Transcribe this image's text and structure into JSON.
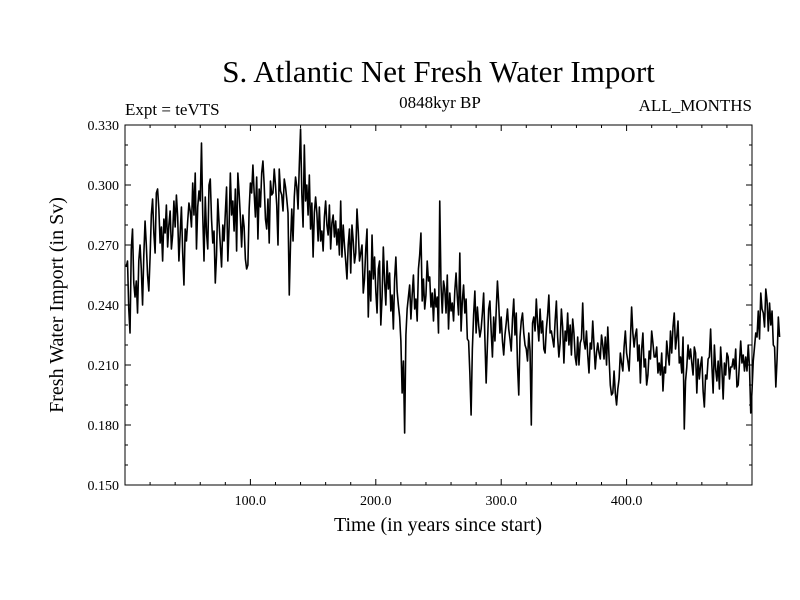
{
  "chart_data": {
    "type": "line",
    "title": "S. Atlantic Net Fresh Water Import",
    "subtitle_left": "Expt = teVTS",
    "subtitle_center": "0848kyr BP",
    "subtitle_right": "ALL_MONTHS",
    "xlabel": "Time (in years since start)",
    "ylabel": "Fresh Water Import (in Sv)",
    "xlim": [
      0,
      500
    ],
    "ylim": [
      0.15,
      0.33
    ],
    "xticks": [
      100,
      200,
      300,
      400
    ],
    "xtick_labels": [
      "100.0",
      "200.0",
      "300.0",
      "400.0"
    ],
    "yticks": [
      0.15,
      0.18,
      0.21,
      0.24,
      0.27,
      0.3,
      0.33
    ],
    "ytick_labels": [
      "0.150",
      "0.180",
      "0.210",
      "0.240",
      "0.270",
      "0.300",
      "0.330"
    ],
    "series": [
      {
        "name": "Fresh Water Import",
        "x_start": 1,
        "x_step": 1,
        "values": [
          0.259,
          0.262,
          0.238,
          0.226,
          0.268,
          0.278,
          0.251,
          0.244,
          0.252,
          0.236,
          0.262,
          0.27,
          0.258,
          0.24,
          0.265,
          0.282,
          0.27,
          0.255,
          0.247,
          0.264,
          0.285,
          0.293,
          0.276,
          0.266,
          0.296,
          0.298,
          0.288,
          0.271,
          0.279,
          0.262,
          0.283,
          0.276,
          0.29,
          0.269,
          0.28,
          0.287,
          0.268,
          0.275,
          0.292,
          0.279,
          0.295,
          0.284,
          0.262,
          0.276,
          0.289,
          0.266,
          0.25,
          0.278,
          0.272,
          0.282,
          0.291,
          0.287,
          0.279,
          0.301,
          0.285,
          0.306,
          0.268,
          0.289,
          0.297,
          0.292,
          0.321,
          0.285,
          0.262,
          0.294,
          0.276,
          0.268,
          0.3,
          0.303,
          0.283,
          0.271,
          0.277,
          0.251,
          0.265,
          0.293,
          0.281,
          0.27,
          0.259,
          0.28,
          0.272,
          0.286,
          0.299,
          0.262,
          0.279,
          0.306,
          0.285,
          0.292,
          0.277,
          0.298,
          0.267,
          0.306,
          0.296,
          0.284,
          0.269,
          0.285,
          0.279,
          0.263,
          0.258,
          0.26,
          0.288,
          0.301,
          0.296,
          0.31,
          0.296,
          0.284,
          0.304,
          0.273,
          0.298,
          0.289,
          0.306,
          0.312,
          0.3,
          0.283,
          0.278,
          0.293,
          0.271,
          0.302,
          0.295,
          0.296,
          0.308,
          0.3,
          0.29,
          0.27,
          0.308,
          0.297,
          0.295,
          0.287,
          0.303,
          0.299,
          0.293,
          0.286,
          0.245,
          0.271,
          0.288,
          0.272,
          0.294,
          0.304,
          0.299,
          0.288,
          0.31,
          0.328,
          0.296,
          0.279,
          0.32,
          0.292,
          0.3,
          0.285,
          0.305,
          0.278,
          0.291,
          0.264,
          0.286,
          0.294,
          0.286,
          0.272,
          0.289,
          0.272,
          0.277,
          0.267,
          0.284,
          0.292,
          0.28,
          0.275,
          0.29,
          0.268,
          0.281,
          0.285,
          0.274,
          0.282,
          0.27,
          0.278,
          0.265,
          0.292,
          0.264,
          0.28,
          0.27,
          0.262,
          0.253,
          0.27,
          0.278,
          0.256,
          0.28,
          0.272,
          0.261,
          0.266,
          0.288,
          0.277,
          0.262,
          0.266,
          0.27,
          0.246,
          0.253,
          0.268,
          0.278,
          0.234,
          0.257,
          0.242,
          0.275,
          0.253,
          0.264,
          0.247,
          0.236,
          0.258,
          0.262,
          0.23,
          0.244,
          0.269,
          0.252,
          0.24,
          0.262,
          0.248,
          0.256,
          0.237,
          0.245,
          0.228,
          0.253,
          0.264,
          0.247,
          0.24,
          0.234,
          0.222,
          0.196,
          0.212,
          0.176,
          0.225,
          0.238,
          0.244,
          0.25,
          0.233,
          0.245,
          0.255,
          0.238,
          0.243,
          0.232,
          0.258,
          0.265,
          0.276,
          0.242,
          0.253,
          0.238,
          0.245,
          0.262,
          0.252,
          0.254,
          0.239,
          0.246,
          0.232,
          0.248,
          0.239,
          0.244,
          0.226,
          0.292,
          0.25,
          0.236,
          0.252,
          0.248,
          0.236,
          0.255,
          0.228,
          0.246,
          0.237,
          0.241,
          0.232,
          0.247,
          0.256,
          0.244,
          0.235,
          0.266,
          0.227,
          0.242,
          0.25,
          0.236,
          0.243,
          0.223,
          0.222,
          0.206,
          0.185,
          0.218,
          0.235,
          0.247,
          0.226,
          0.239,
          0.23,
          0.224,
          0.228,
          0.236,
          0.246,
          0.223,
          0.201,
          0.22,
          0.238,
          0.242,
          0.227,
          0.214,
          0.234,
          0.222,
          0.237,
          0.252,
          0.241,
          0.226,
          0.234,
          0.222,
          0.215,
          0.225,
          0.231,
          0.238,
          0.228,
          0.223,
          0.217,
          0.233,
          0.243,
          0.225,
          0.236,
          0.21,
          0.195,
          0.224,
          0.232,
          0.236,
          0.226,
          0.22,
          0.218,
          0.212,
          0.226,
          0.217,
          0.18,
          0.231,
          0.234,
          0.227,
          0.243,
          0.231,
          0.222,
          0.238,
          0.226,
          0.232,
          0.218,
          0.216,
          0.228,
          0.235,
          0.245,
          0.226,
          0.227,
          0.223,
          0.219,
          0.232,
          0.242,
          0.224,
          0.214,
          0.221,
          0.238,
          0.229,
          0.211,
          0.227,
          0.222,
          0.236,
          0.22,
          0.23,
          0.215,
          0.233,
          0.226,
          0.214,
          0.21,
          0.224,
          0.21,
          0.221,
          0.223,
          0.241,
          0.222,
          0.218,
          0.227,
          0.215,
          0.206,
          0.221,
          0.218,
          0.232,
          0.22,
          0.208,
          0.216,
          0.221,
          0.216,
          0.213,
          0.225,
          0.22,
          0.213,
          0.224,
          0.21,
          0.229,
          0.214,
          0.2,
          0.195,
          0.196,
          0.207,
          0.196,
          0.19,
          0.198,
          0.203,
          0.216,
          0.211,
          0.207,
          0.219,
          0.227,
          0.216,
          0.212,
          0.207,
          0.222,
          0.239,
          0.226,
          0.219,
          0.225,
          0.228,
          0.212,
          0.22,
          0.201,
          0.218,
          0.226,
          0.209,
          0.213,
          0.2,
          0.205,
          0.217,
          0.213,
          0.227,
          0.221,
          0.214,
          0.214,
          0.219,
          0.206,
          0.211,
          0.205,
          0.216,
          0.197,
          0.209,
          0.206,
          0.222,
          0.215,
          0.21,
          0.227,
          0.216,
          0.229,
          0.236,
          0.218,
          0.224,
          0.232,
          0.211,
          0.214,
          0.206,
          0.224,
          0.178,
          0.202,
          0.209,
          0.22,
          0.213,
          0.218,
          0.211,
          0.205,
          0.219,
          0.216,
          0.196,
          0.213,
          0.203,
          0.21,
          0.214,
          0.197,
          0.189,
          0.205,
          0.203,
          0.213,
          0.214,
          0.228,
          0.21,
          0.196,
          0.22,
          0.208,
          0.202,
          0.212,
          0.198,
          0.219,
          0.208,
          0.193,
          0.211,
          0.205,
          0.216,
          0.214,
          0.203,
          0.209,
          0.209,
          0.213,
          0.208,
          0.218,
          0.199,
          0.2,
          0.211,
          0.222,
          0.211,
          0.215,
          0.207,
          0.214,
          0.207,
          0.22,
          0.209,
          0.186,
          0.197,
          0.212,
          0.219,
          0.226,
          0.224,
          0.237,
          0.223,
          0.246,
          0.238,
          0.236,
          0.229,
          0.248,
          0.242,
          0.227,
          0.241,
          0.23,
          0.237,
          0.22,
          0.219,
          0.199,
          0.213,
          0.234,
          0.224
        ]
      }
    ]
  }
}
